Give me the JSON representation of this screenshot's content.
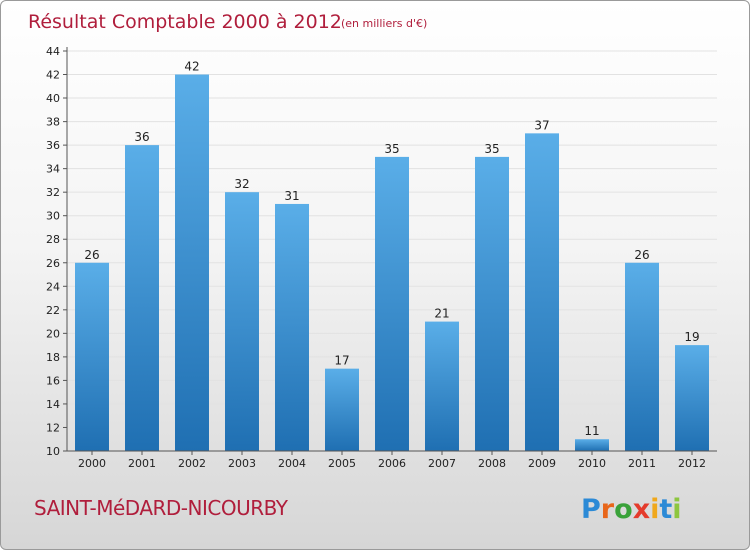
{
  "chart_data": {
    "type": "bar",
    "title": "Résultat Comptable 2000 à 2012",
    "subtitle": "(en milliers d'€)",
    "categories": [
      "2000",
      "2001",
      "2002",
      "2003",
      "2004",
      "2005",
      "2006",
      "2007",
      "2008",
      "2009",
      "2010",
      "2011",
      "2012"
    ],
    "values": [
      26,
      36,
      42,
      32,
      31,
      17,
      35,
      21,
      35,
      37,
      11,
      26,
      19
    ],
    "xlabel": "",
    "ylabel": "",
    "ylim": [
      10,
      44
    ],
    "yticks": [
      10,
      12,
      14,
      16,
      18,
      20,
      22,
      24,
      26,
      28,
      30,
      32,
      34,
      36,
      38,
      40,
      42,
      44
    ],
    "grid": true,
    "legend": "none"
  },
  "footer": {
    "commune": "SAINT-MéDARD-NICOURBY",
    "logo": {
      "text": "Proxiti",
      "letters": [
        "P",
        "r",
        "o",
        "x",
        "i",
        "t",
        "i"
      ],
      "colors": [
        "#2c8ad6",
        "#e8661a",
        "#3aa23a",
        "#e43b2c",
        "#f0a81c",
        "#2c8ad6",
        "#8dc63f"
      ]
    }
  },
  "colors": {
    "title": "#b01e3c",
    "bar_top": "#5aaee8",
    "bar_bottom": "#1f6fb2"
  }
}
